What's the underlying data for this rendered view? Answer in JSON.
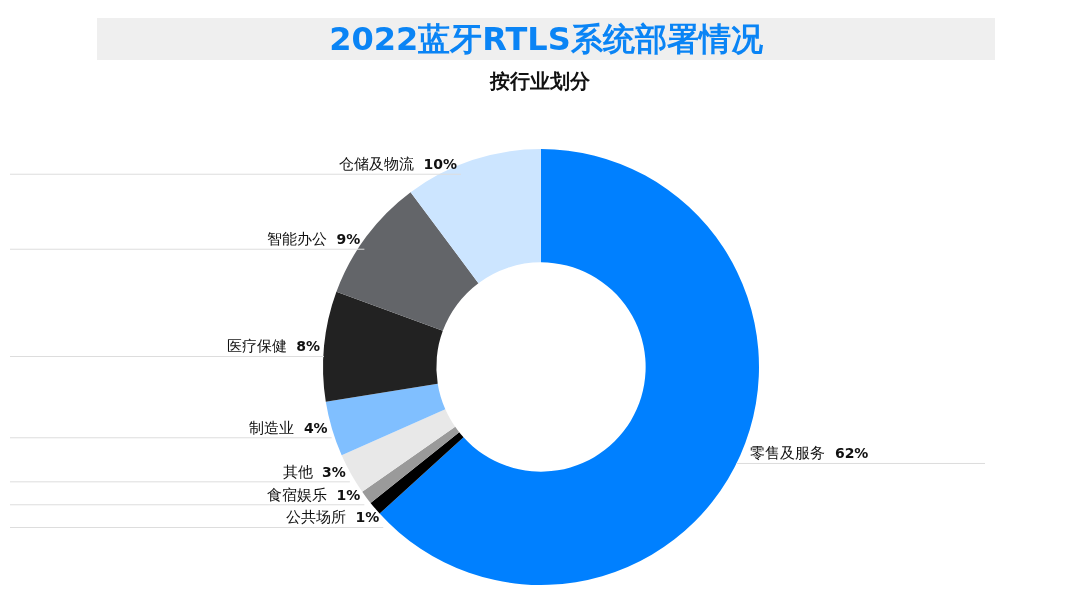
{
  "chart_data": {
    "type": "donut",
    "title": "2022蓝牙RTLS系统部署情况",
    "subtitle": "按行业划分",
    "categories": [
      "零售及服务",
      "公共场所",
      "食宿娱乐",
      "其他",
      "制造业",
      "医疗保健",
      "智能办公",
      "仓储及物流"
    ],
    "values": [
      62,
      1,
      1,
      3,
      4,
      8,
      9,
      10
    ],
    "colors": [
      "#0080ff",
      "#000000",
      "#9a9a9a",
      "#e8e8e8",
      "#80bfff",
      "#222222",
      "#636569",
      "#cce5ff"
    ],
    "value_labels": [
      "62%",
      "1%",
      "1%",
      "3%",
      "4%",
      "8%",
      "9%",
      "10%"
    ],
    "legend": false
  }
}
